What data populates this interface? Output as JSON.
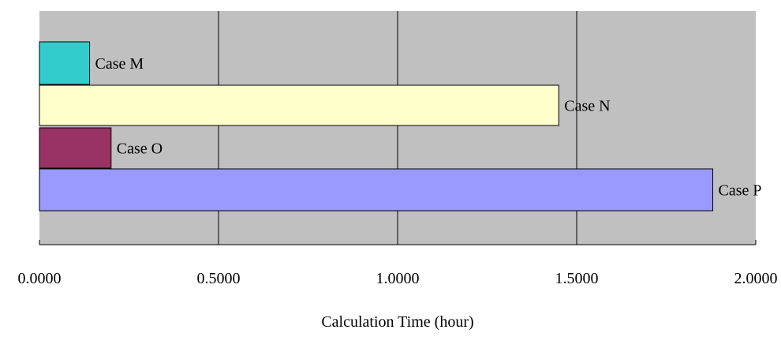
{
  "chart_data": {
    "type": "bar",
    "orientation": "horizontal",
    "categories": [
      "Case M",
      "Case N",
      "Case O",
      "Case P"
    ],
    "values": [
      0.14,
      1.45,
      0.2,
      1.88
    ],
    "colors": [
      "#33CCCC",
      "#FFFFCC",
      "#993366",
      "#9999FF"
    ],
    "xlabel": "Calculation Time (hour)",
    "ylabel": "",
    "xlim": [
      0,
      2
    ],
    "x_ticks": [
      0,
      0.5,
      1.0,
      1.5,
      2.0
    ],
    "x_tick_labels": [
      "0.0000",
      "0.5000",
      "1.0000",
      "1.5000",
      "2.0000"
    ],
    "grid": "vertical",
    "legend": "none",
    "plot_background": "#C0C0C0"
  }
}
